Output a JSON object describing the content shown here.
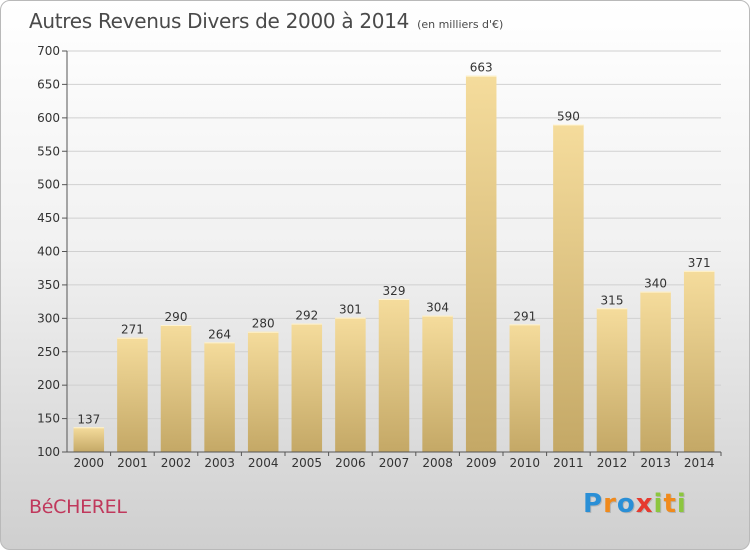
{
  "title": "Autres Revenus Divers de 2000 à 2014",
  "subtitle": "(en milliers d'€)",
  "place": "BéCHEREL",
  "logo": {
    "text": "Proxiti",
    "letters": [
      {
        "char": "P",
        "color": "#2a8fd6"
      },
      {
        "char": "r",
        "color": "#f08a1c"
      },
      {
        "char": "o",
        "color": "#2a8fd6"
      },
      {
        "char": "x",
        "color": "#e63a2f"
      },
      {
        "char": "i",
        "color": "#8cc63f"
      },
      {
        "char": "t",
        "color": "#f08a1c"
      },
      {
        "char": "i",
        "color": "#8cc63f"
      }
    ]
  },
  "colors": {
    "bar_light": "#f5dc9c",
    "bar_dark": "#c4a866",
    "grid": "#d0d0d0",
    "axis": "#555555",
    "place": "#c0385c"
  },
  "chart_data": {
    "type": "bar",
    "categories": [
      "2000",
      "2001",
      "2002",
      "2003",
      "2004",
      "2005",
      "2006",
      "2007",
      "2008",
      "2009",
      "2010",
      "2011",
      "2012",
      "2013",
      "2014"
    ],
    "values": [
      137,
      271,
      290,
      264,
      280,
      292,
      301,
      329,
      304,
      663,
      291,
      590,
      315,
      340,
      371
    ],
    "ylim": [
      100,
      700
    ],
    "yticks": [
      100,
      150,
      200,
      250,
      300,
      350,
      400,
      450,
      500,
      550,
      600,
      650,
      700
    ],
    "grid": true,
    "xlabel": "",
    "ylabel": ""
  }
}
